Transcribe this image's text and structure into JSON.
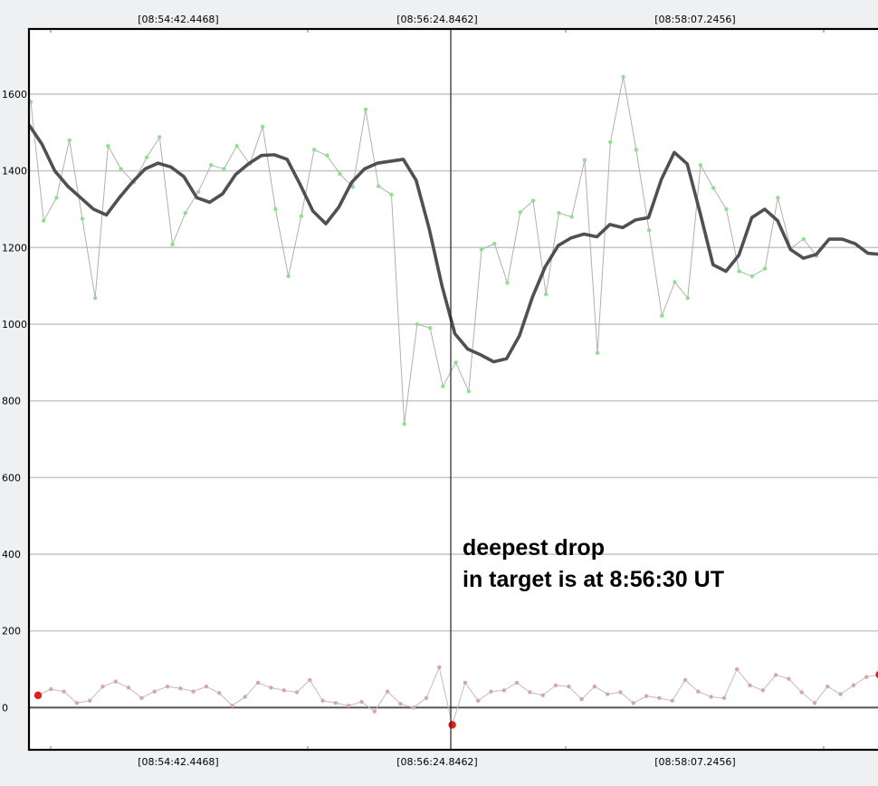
{
  "chart_data": {
    "type": "line",
    "x_ticks": [
      "[08:54:42.4468]",
      "[08:56:24.8462]",
      "[08:58:07.2456]"
    ],
    "y_ticks": [
      0,
      200,
      400,
      600,
      800,
      1000,
      1200,
      1400,
      1600
    ],
    "ylim": [
      -110,
      1770
    ],
    "cursor_label": "[08:56:24.8462]",
    "annotation": [
      "deepest drop",
      "in target is at 8:56:30 UT"
    ],
    "colors": {
      "raw_points": "#8fdf8f",
      "raw_line": "#b0b0b0",
      "smoothed": "#505050",
      "comparison_points": "#d6a7a7",
      "comparison_highlight": "#e02020",
      "gridline": "#c8c8c8",
      "zero_line": "#555555"
    },
    "series": [
      {
        "values": [
          1580,
          1270,
          1330,
          1480,
          1275,
          1068,
          1465,
          1405,
          1370,
          1435,
          1488,
          1208,
          1290,
          1345,
          1415,
          1405,
          1465,
          1418,
          1515,
          1300,
          1125,
          1282,
          1455,
          1440,
          1392,
          1358,
          1560,
          1360,
          1338,
          740,
          1000,
          990,
          838,
          900,
          825,
          1195,
          1210,
          1108,
          1292,
          1322,
          1078,
          1290,
          1280,
          1428,
          925,
          1475,
          1645,
          1455,
          1245,
          1022,
          1110,
          1068,
          1415,
          1355,
          1300,
          1138,
          1125,
          1145,
          1330,
          1198,
          1222,
          1178
        ]
      },
      {
        "values": [
          1520,
          1470,
          1400,
          1360,
          1330,
          1300,
          1285,
          1330,
          1370,
          1405,
          1420,
          1410,
          1385,
          1330,
          1318,
          1340,
          1390,
          1418,
          1440,
          1442,
          1430,
          1365,
          1295,
          1262,
          1305,
          1370,
          1405,
          1420,
          1425,
          1430,
          1375,
          1250,
          1100,
          975,
          935,
          920,
          902,
          910,
          970,
          1070,
          1150,
          1205,
          1225,
          1235,
          1228,
          1260,
          1252,
          1272,
          1278,
          1378,
          1448,
          1418,
          1290,
          1155,
          1138,
          1180,
          1278,
          1300,
          1270,
          1195,
          1172,
          1182,
          1222,
          1222,
          1210,
          1185,
          1182
        ]
      },
      {
        "values": [
          32,
          48,
          42,
          12,
          18,
          55,
          68,
          52,
          25,
          42,
          55,
          50,
          42,
          55,
          38,
          5,
          28,
          65,
          52,
          45,
          40,
          72,
          18,
          12,
          5,
          15,
          -10,
          42,
          10,
          0,
          25,
          105,
          -45,
          65,
          18,
          42,
          45,
          65,
          40,
          32,
          58,
          55,
          22,
          55,
          35,
          40,
          12,
          30,
          25,
          18,
          72,
          42,
          28,
          25,
          100,
          58,
          45,
          85,
          75,
          40,
          12,
          55,
          35,
          58,
          80,
          86
        ]
      }
    ]
  }
}
